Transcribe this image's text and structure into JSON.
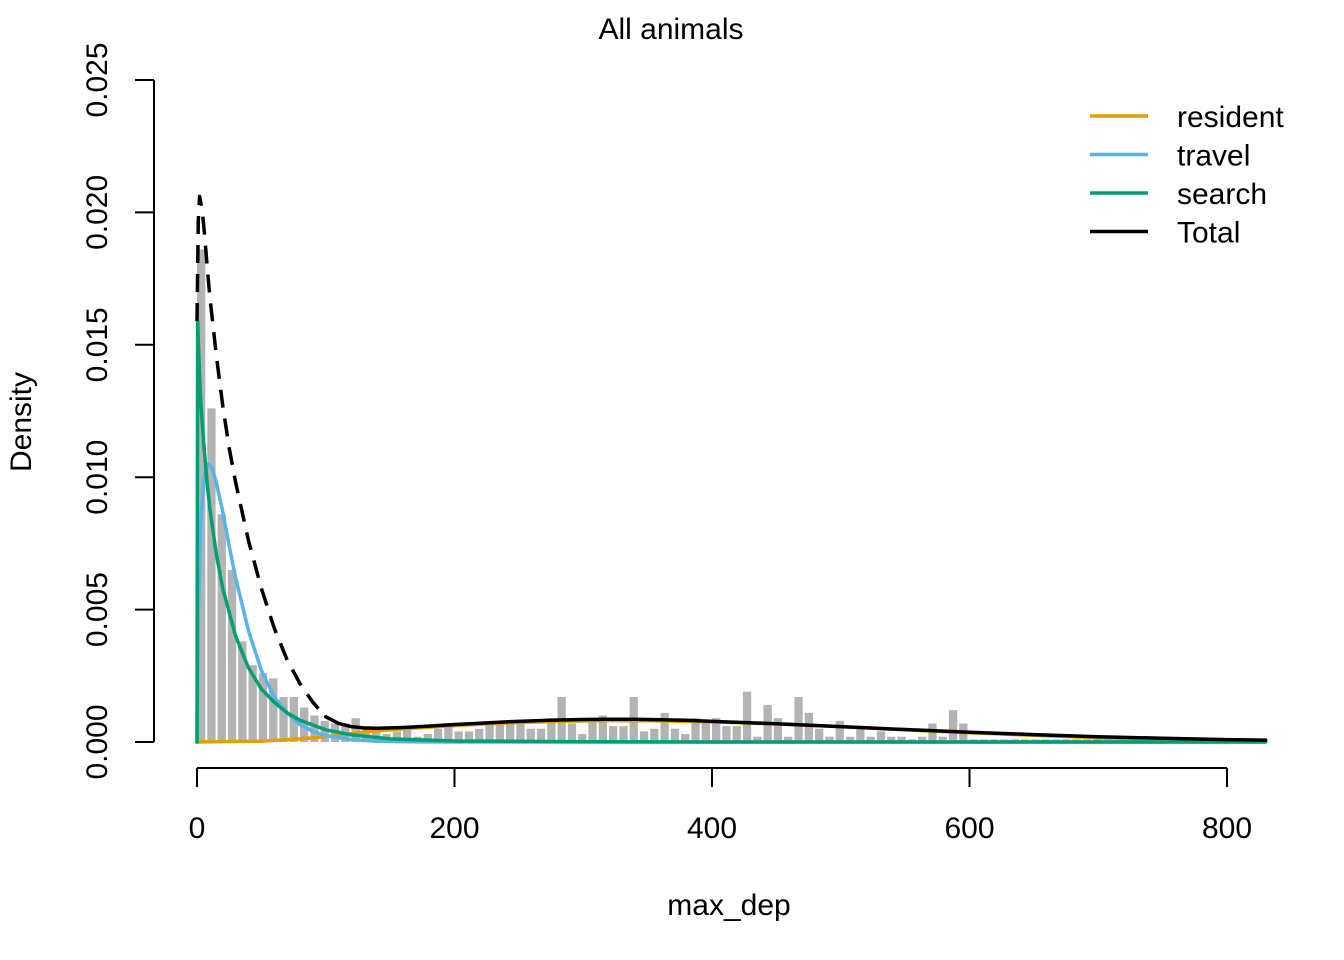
{
  "chart_data": {
    "type": "histogram",
    "title": "All animals",
    "xlabel": "max_dep",
    "ylabel": "Density",
    "xlim": [
      0,
      830
    ],
    "ylim": [
      0,
      0.025
    ],
    "x_ticks": [
      0,
      200,
      400,
      600,
      800
    ],
    "x_tick_labels": [
      "0",
      "200",
      "400",
      "600",
      "800"
    ],
    "y_ticks": [
      0,
      0.005,
      0.01,
      0.015,
      0.02,
      0.025
    ],
    "y_tick_labels": [
      "0.000",
      "0.005",
      "0.010",
      "0.015",
      "0.020",
      "0.025"
    ],
    "grid": false,
    "legend_position": "top-right",
    "histogram": {
      "color": "#b3b3b3",
      "bin_width": 8,
      "bins": [
        [
          0,
          0.0186
        ],
        [
          8,
          0.0126
        ],
        [
          16,
          0.0086
        ],
        [
          24,
          0.0065
        ],
        [
          32,
          0.0038
        ],
        [
          40,
          0.0029
        ],
        [
          48,
          0.0026
        ],
        [
          56,
          0.0024
        ],
        [
          64,
          0.0017
        ],
        [
          72,
          0.0017
        ],
        [
          80,
          0.0013
        ],
        [
          88,
          0.001
        ],
        [
          96,
          0.0008
        ],
        [
          104,
          0.0007
        ],
        [
          112,
          0.0007
        ],
        [
          120,
          0.0009
        ],
        [
          128,
          0.0006
        ],
        [
          136,
          0.0005
        ],
        [
          144,
          0.0003
        ],
        [
          152,
          0.0004
        ],
        [
          160,
          0.0005
        ],
        [
          168,
          0.0002
        ],
        [
          176,
          0.0003
        ],
        [
          184,
          0.0005
        ],
        [
          192,
          0.0006
        ],
        [
          200,
          0.0004
        ],
        [
          208,
          0.0004
        ],
        [
          216,
          0.0005
        ],
        [
          224,
          0.0007
        ],
        [
          232,
          0.0007
        ],
        [
          240,
          0.0007
        ],
        [
          248,
          0.0007
        ],
        [
          256,
          0.0005
        ],
        [
          264,
          0.0005
        ],
        [
          272,
          0.0009
        ],
        [
          280,
          0.0017
        ],
        [
          288,
          0.0007
        ],
        [
          296,
          0.0003
        ],
        [
          304,
          0.0009
        ],
        [
          312,
          0.001
        ],
        [
          320,
          0.0006
        ],
        [
          328,
          0.0006
        ],
        [
          336,
          0.0017
        ],
        [
          344,
          0.0004
        ],
        [
          352,
          0.0005
        ],
        [
          360,
          0.0011
        ],
        [
          368,
          0.0005
        ],
        [
          376,
          0.0003
        ],
        [
          384,
          0.0009
        ],
        [
          392,
          0.0008
        ],
        [
          400,
          0.0009
        ],
        [
          408,
          0.0006
        ],
        [
          416,
          0.0006
        ],
        [
          424,
          0.0019
        ],
        [
          432,
          0.0002
        ],
        [
          440,
          0.0014
        ],
        [
          448,
          0.0009
        ],
        [
          456,
          0.0002
        ],
        [
          464,
          0.0017
        ],
        [
          472,
          0.0011
        ],
        [
          480,
          0.0005
        ],
        [
          488,
          0.0002
        ],
        [
          496,
          0.0008
        ],
        [
          504,
          0.0002
        ],
        [
          512,
          0.0006
        ],
        [
          520,
          0.0002
        ],
        [
          528,
          0.0004
        ],
        [
          536,
          0.0002
        ],
        [
          544,
          0.0002
        ],
        [
          552,
          0.0001
        ],
        [
          560,
          0.0002
        ],
        [
          568,
          0.0007
        ],
        [
          576,
          0.0002
        ],
        [
          584,
          0.0012
        ],
        [
          592,
          0.0007
        ],
        [
          600,
          0.0001
        ],
        [
          608,
          0.0001
        ],
        [
          616,
          0.0001
        ],
        [
          624,
          0.0001
        ],
        [
          632,
          0.0001
        ],
        [
          640,
          0.0001
        ],
        [
          648,
          0.0001
        ],
        [
          656,
          0.0001
        ],
        [
          664,
          0.0001
        ],
        [
          672,
          0.0001
        ],
        [
          680,
          0.0001
        ],
        [
          688,
          0.0001
        ],
        [
          696,
          0.0001
        ],
        [
          704,
          0.0001
        ],
        [
          712,
          0.0001
        ]
      ]
    },
    "series": [
      {
        "name": "resident",
        "color": "#E69F00",
        "style": "solid",
        "x": [
          0,
          50,
          80,
          100,
          130,
          160,
          200,
          240,
          280,
          320,
          360,
          400,
          450,
          500,
          550,
          600,
          650,
          700,
          750,
          800,
          830
        ],
        "y": [
          0,
          3e-05,
          0.00012,
          0.0002,
          0.00038,
          0.0005,
          0.00062,
          0.00072,
          0.00078,
          0.00081,
          0.0008,
          0.00076,
          0.00068,
          0.00058,
          0.00046,
          0.00035,
          0.00025,
          0.00016,
          0.0001,
          6e-05,
          4e-05
        ]
      },
      {
        "name": "travel",
        "color": "#56B4E9",
        "style": "solid",
        "x": [
          0,
          1,
          2,
          3,
          5,
          7,
          9,
          12,
          15,
          20,
          25,
          30,
          40,
          50,
          60,
          70,
          80,
          90,
          100,
          120,
          140,
          160,
          200,
          300,
          400,
          600,
          830
        ],
        "y": [
          0,
          0.0045,
          0.0068,
          0.0083,
          0.0098,
          0.0104,
          0.0105,
          0.0103,
          0.0098,
          0.0087,
          0.0074,
          0.0062,
          0.0042,
          0.0027,
          0.0017,
          0.0011,
          0.00066,
          0.0004,
          0.00024,
          9e-05,
          3e-05,
          1e-05,
          0,
          0,
          0,
          0,
          0
        ]
      },
      {
        "name": "search",
        "color": "#009E73",
        "style": "solid",
        "x": [
          0,
          0.5,
          1,
          2,
          3,
          5,
          8,
          10,
          15,
          20,
          30,
          40,
          50,
          60,
          70,
          80,
          100,
          120,
          150,
          200,
          300,
          400,
          600,
          830
        ],
        "y": [
          0,
          0.0159,
          0.0152,
          0.0138,
          0.0128,
          0.0114,
          0.0097,
          0.0088,
          0.0071,
          0.0058,
          0.004,
          0.0028,
          0.002,
          0.0015,
          0.0011,
          0.00082,
          0.00046,
          0.00027,
          0.00012,
          4e-05,
          1e-05,
          0,
          0,
          0
        ]
      },
      {
        "name": "Total",
        "color": "#000000",
        "style": "solid",
        "x": [
          100,
          110,
          120,
          130,
          140,
          160,
          180,
          200,
          220,
          240,
          260,
          280,
          300,
          320,
          340,
          360,
          380,
          400,
          450,
          500,
          550,
          600,
          650,
          700,
          750,
          800,
          830
        ],
        "y": [
          0.00095,
          0.0007,
          0.00058,
          0.00053,
          0.00052,
          0.00055,
          0.0006,
          0.00066,
          0.00071,
          0.00076,
          0.0008,
          0.00083,
          0.00085,
          0.00086,
          0.00086,
          0.00084,
          0.00082,
          0.00078,
          0.00069,
          0.00058,
          0.00047,
          0.00037,
          0.00028,
          0.0002,
          0.00014,
          9e-05,
          7e-05
        ]
      },
      {
        "name": "",
        "color": "#000000",
        "style": "dashed",
        "x": [
          0,
          1,
          2,
          4,
          6,
          8,
          10,
          15,
          20,
          25,
          30,
          40,
          50,
          60,
          70,
          80,
          90,
          100
        ],
        "y": [
          0.0159,
          0.0197,
          0.0206,
          0.0201,
          0.0191,
          0.0179,
          0.0168,
          0.0146,
          0.0127,
          0.0111,
          0.0098,
          0.0076,
          0.0058,
          0.0043,
          0.0031,
          0.0022,
          0.0015,
          0.00095
        ]
      }
    ]
  }
}
